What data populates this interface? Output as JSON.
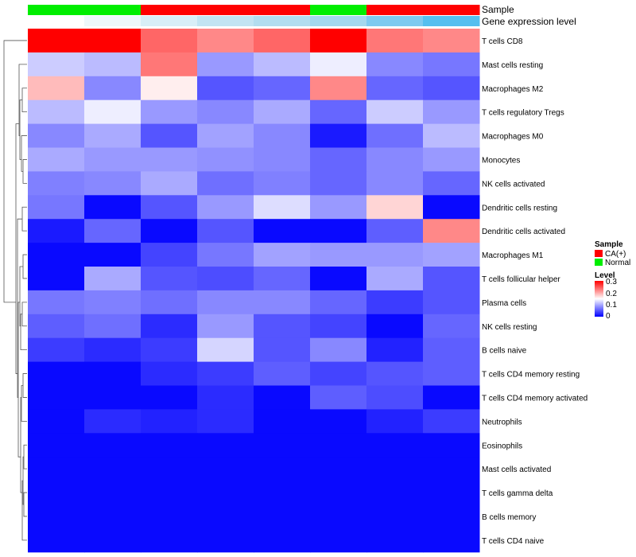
{
  "chart_data": {
    "type": "heatmap",
    "annotation_rows": [
      {
        "name": "Sample",
        "values": [
          "Normal",
          "Normal",
          "CA(+)",
          "CA(+)",
          "CA(+)",
          "Normal",
          "CA(+)",
          "CA(+)"
        ]
      },
      {
        "name": "Gene expression level",
        "colors": [
          "#ffffff",
          "#eef7fb",
          "#d8eef7",
          "#c2e4f2",
          "#b2ddef",
          "#a4d8ee",
          "#7ecaf0",
          "#55bfef"
        ]
      }
    ],
    "rows": [
      "T cells CD8",
      "Mast cells resting",
      "Macrophages M2",
      "T cells regulatory  Tregs",
      "Macrophages M0",
      "Monocytes",
      "NK cells activated",
      "Dendritic cells resting",
      "Dendritic cells activated",
      "Macrophages M1",
      "T cells follicular helper",
      "Plasma cells",
      "NK cells resting",
      "B cells naive",
      "T cells CD4 memory resting",
      "T cells CD4 memory activated",
      "Neutrophils",
      "Eosinophils",
      "Mast cells activated",
      "T cells gamma delta",
      "B cells memory",
      "T cells CD4 naive"
    ],
    "values": [
      [
        0.3,
        0.3,
        0.24,
        0.22,
        0.24,
        0.3,
        0.23,
        0.22
      ],
      [
        0.12,
        0.11,
        0.23,
        0.09,
        0.11,
        0.14,
        0.08,
        0.07
      ],
      [
        0.19,
        0.08,
        0.16,
        0.05,
        0.06,
        0.22,
        0.06,
        0.05
      ],
      [
        0.11,
        0.14,
        0.09,
        0.08,
        0.1,
        0.06,
        0.12,
        0.09
      ],
      [
        0.08,
        0.1,
        0.05,
        0.095,
        0.08,
        0.015,
        0.065,
        0.11
      ],
      [
        0.1,
        0.09,
        0.09,
        0.085,
        0.08,
        0.06,
        0.08,
        0.09
      ],
      [
        0.075,
        0.08,
        0.1,
        0.065,
        0.075,
        0.06,
        0.08,
        0.06
      ],
      [
        0.07,
        0.005,
        0.05,
        0.09,
        0.13,
        0.09,
        0.175,
        0.005
      ],
      [
        0.015,
        0.06,
        0.005,
        0.05,
        0.005,
        0.005,
        0.055,
        0.22
      ],
      [
        0.005,
        0.005,
        0.04,
        0.07,
        0.095,
        0.09,
        0.09,
        0.095
      ],
      [
        0.005,
        0.1,
        0.05,
        0.045,
        0.06,
        0.005,
        0.1,
        0.05
      ],
      [
        0.07,
        0.075,
        0.065,
        0.08,
        0.08,
        0.06,
        0.035,
        0.05
      ],
      [
        0.055,
        0.065,
        0.025,
        0.09,
        0.05,
        0.04,
        0.005,
        0.06
      ],
      [
        0.035,
        0.025,
        0.035,
        0.125,
        0.05,
        0.08,
        0.02,
        0.055
      ],
      [
        0.005,
        0.005,
        0.025,
        0.035,
        0.055,
        0.04,
        0.05,
        0.055
      ],
      [
        0.005,
        0.005,
        0.005,
        0.025,
        0.005,
        0.055,
        0.045,
        0.005
      ],
      [
        0.005,
        0.025,
        0.02,
        0.025,
        0.005,
        0.005,
        0.02,
        0.035
      ],
      [
        0.005,
        0.005,
        0.005,
        0.005,
        0.005,
        0.005,
        0.005,
        0.005
      ],
      [
        0.005,
        0.005,
        0.005,
        0.005,
        0.005,
        0.005,
        0.005,
        0.005
      ],
      [
        0.005,
        0.005,
        0.005,
        0.005,
        0.005,
        0.005,
        0.005,
        0.005
      ],
      [
        0.005,
        0.005,
        0.005,
        0.005,
        0.005,
        0.005,
        0.005,
        0.005
      ],
      [
        0.005,
        0.005,
        0.005,
        0.005,
        0.005,
        0.005,
        0.005,
        0.005
      ]
    ],
    "color_scale": {
      "low": "#0000ff",
      "mid": "#ffffff",
      "high": "#ff0000",
      "min": 0,
      "mid_value": 0.15,
      "max": 0.3
    },
    "legends": {
      "sample": {
        "title": "Sample",
        "items": [
          {
            "label": "CA(+)",
            "color": "#ff0000"
          },
          {
            "label": "Normal",
            "color": "#00ee00"
          }
        ]
      },
      "level": {
        "title": "Level",
        "ticks": [
          "0.3",
          "0.2",
          "0.1",
          "0"
        ]
      }
    },
    "row_dendrogram": true
  }
}
